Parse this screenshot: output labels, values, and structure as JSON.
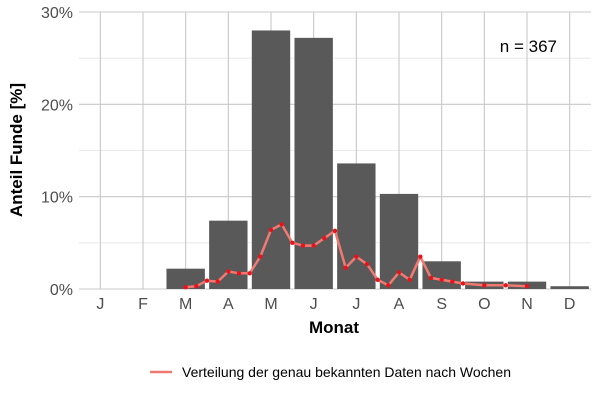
{
  "chart_data": {
    "type": "bar",
    "title": "",
    "xlabel": "Monat",
    "ylabel": "Anteil Funde [%]",
    "ylim": [
      0,
      30
    ],
    "yticks": [
      0,
      10,
      20,
      30
    ],
    "ytick_labels": [
      "0%",
      "10%",
      "20%",
      "30%"
    ],
    "categories": [
      "J",
      "F",
      "M",
      "A",
      "M",
      "J",
      "J",
      "A",
      "S",
      "O",
      "N",
      "D"
    ],
    "series": [
      {
        "kind": "bar",
        "color": "#595959",
        "values": [
          0,
          0,
          2.2,
          7.4,
          28.0,
          27.2,
          13.6,
          10.3,
          3.0,
          0.8,
          0.8,
          0.3
        ]
      },
      {
        "kind": "line",
        "name": "Verteilung der genau bekannten Daten nach Wochen",
        "color": "#f07a72",
        "point_color": "#e8141c",
        "x": [
          3.0,
          3.25,
          3.5,
          3.75,
          4.0,
          4.25,
          4.5,
          4.75,
          5.0,
          5.25,
          5.5,
          5.75,
          6.0,
          6.25,
          6.5,
          6.75,
          7.0,
          7.25,
          7.5,
          7.75,
          8.0,
          8.25,
          8.5,
          8.75,
          9.0,
          9.25,
          9.5,
          10.0,
          10.5,
          11.0
        ],
        "y": [
          0.2,
          0.3,
          0.9,
          0.8,
          1.9,
          1.7,
          1.7,
          3.5,
          6.4,
          7.0,
          5.0,
          4.7,
          4.7,
          5.5,
          6.3,
          2.3,
          3.5,
          2.7,
          1.0,
          0.4,
          1.8,
          1.0,
          3.5,
          1.2,
          1.0,
          0.8,
          0.6,
          0.4,
          0.4,
          0.3
        ]
      }
    ],
    "annotations": [
      {
        "text": "n = 367",
        "position": "top-right"
      }
    ],
    "grid": true,
    "legend": {
      "position": "bottom-right",
      "entries": [
        "Verteilung der genau bekannten Daten nach Wochen"
      ]
    }
  }
}
